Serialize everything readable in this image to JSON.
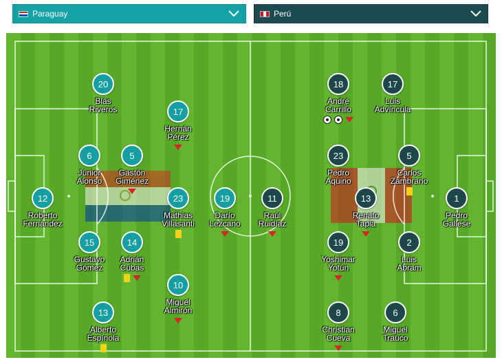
{
  "home": {
    "team": "Paraguay",
    "flag_colors": [
      "#d52b1e",
      "#ffffff",
      "#0038a8"
    ],
    "players": [
      {
        "number": "20",
        "first": "Blás",
        "last": "Riveros",
        "events": []
      },
      {
        "number": "17",
        "first": "Hernán",
        "last": "Pérez",
        "events": [
          "sub"
        ]
      },
      {
        "number": "6",
        "first": "Júnior",
        "last": "Alonso",
        "events": []
      },
      {
        "number": "5",
        "first": "Gastón",
        "last": "Giménez",
        "events": [
          "sub"
        ]
      },
      {
        "number": "12",
        "first": "Roberto",
        "last": "Fernández",
        "events": []
      },
      {
        "number": "23",
        "first": "Mathias",
        "last": "Villasanti",
        "events": [
          "yellow"
        ]
      },
      {
        "number": "19",
        "first": "Darío",
        "last": "Lezcano",
        "events": [
          "sub"
        ]
      },
      {
        "number": "15",
        "first": "Gustavo",
        "last": "Gómez",
        "events": []
      },
      {
        "number": "14",
        "first": "Adrián",
        "last": "Cubas",
        "events": [
          "yellow",
          "sub"
        ]
      },
      {
        "number": "10",
        "first": "Miguel",
        "last": "Almirón",
        "events": [
          "sub"
        ]
      },
      {
        "number": "13",
        "first": "Alberto",
        "last": "Espínola",
        "events": [
          "yellow"
        ]
      }
    ]
  },
  "away": {
    "team": "Perú",
    "flag_colors": [
      "#d91023",
      "#ffffff"
    ],
    "players": [
      {
        "number": "18",
        "first": "André",
        "last": "Carrillo",
        "events": [
          "goal",
          "goal",
          "sub"
        ]
      },
      {
        "number": "17",
        "first": "Luis",
        "last": "Advíncula",
        "events": []
      },
      {
        "number": "23",
        "first": "Pedro",
        "last": "Aquino",
        "events": []
      },
      {
        "number": "5",
        "first": "Carlos",
        "last": "Zambrano",
        "events": [
          "yellow"
        ]
      },
      {
        "number": "11",
        "first": "Raúl",
        "last": "Ruidíaz",
        "events": [
          "sub"
        ]
      },
      {
        "number": "13",
        "first": "Renato",
        "last": "Tapia",
        "events": [
          "sub"
        ]
      },
      {
        "number": "1",
        "first": "Pedro",
        "last": "Gallese",
        "events": []
      },
      {
        "number": "19",
        "first": "Yoshimar",
        "last": "Yotún",
        "events": [
          "sub"
        ]
      },
      {
        "number": "2",
        "first": "Luis",
        "last": "Abram",
        "events": []
      },
      {
        "number": "8",
        "first": "Christian",
        "last": "Cueva",
        "events": [
          "sub"
        ]
      },
      {
        "number": "6",
        "first": "Miguel",
        "last": "Trauco",
        "events": []
      }
    ]
  },
  "icons": {
    "dropdown": "chevron-down-icon",
    "substitution": "red-down-arrow-icon",
    "yellow_card": "yellow-card-icon",
    "goal": "soccer-ball-icon"
  }
}
